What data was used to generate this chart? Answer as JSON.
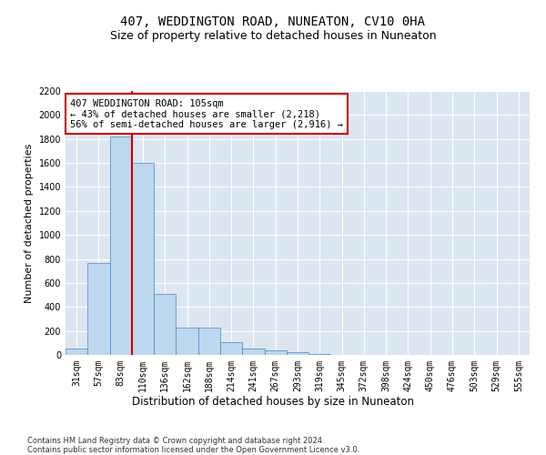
{
  "title": "407, WEDDINGTON ROAD, NUNEATON, CV10 0HA",
  "subtitle": "Size of property relative to detached houses in Nuneaton",
  "xlabel": "Distribution of detached houses by size in Nuneaton",
  "ylabel": "Number of detached properties",
  "categories": [
    "31sqm",
    "57sqm",
    "83sqm",
    "110sqm",
    "136sqm",
    "162sqm",
    "188sqm",
    "214sqm",
    "241sqm",
    "267sqm",
    "293sqm",
    "319sqm",
    "345sqm",
    "372sqm",
    "398sqm",
    "424sqm",
    "450sqm",
    "476sqm",
    "503sqm",
    "529sqm",
    "555sqm"
  ],
  "values": [
    55,
    770,
    1820,
    1600,
    510,
    230,
    230,
    105,
    50,
    38,
    22,
    8,
    2,
    0,
    0,
    0,
    0,
    0,
    0,
    0,
    0
  ],
  "bar_color": "#bdd7ee",
  "bar_edge_color": "#4a86c8",
  "vline_color": "#cc0000",
  "annotation_text": "407 WEDDINGTON ROAD: 105sqm\n← 43% of detached houses are smaller (2,218)\n56% of semi-detached houses are larger (2,916) →",
  "annotation_box_color": "#cc0000",
  "ylim": [
    0,
    2200
  ],
  "yticks": [
    0,
    200,
    400,
    600,
    800,
    1000,
    1200,
    1400,
    1600,
    1800,
    2000,
    2200
  ],
  "footer_line1": "Contains HM Land Registry data © Crown copyright and database right 2024.",
  "footer_line2": "Contains public sector information licensed under the Open Government Licence v3.0.",
  "bg_color": "#ffffff",
  "plot_bg_color": "#dce6f1",
  "grid_color": "#ffffff",
  "title_fontsize": 10,
  "subtitle_fontsize": 9,
  "tick_fontsize": 7,
  "ylabel_fontsize": 8,
  "xlabel_fontsize": 8.5,
  "annotation_fontsize": 7.5,
  "footer_fontsize": 6
}
